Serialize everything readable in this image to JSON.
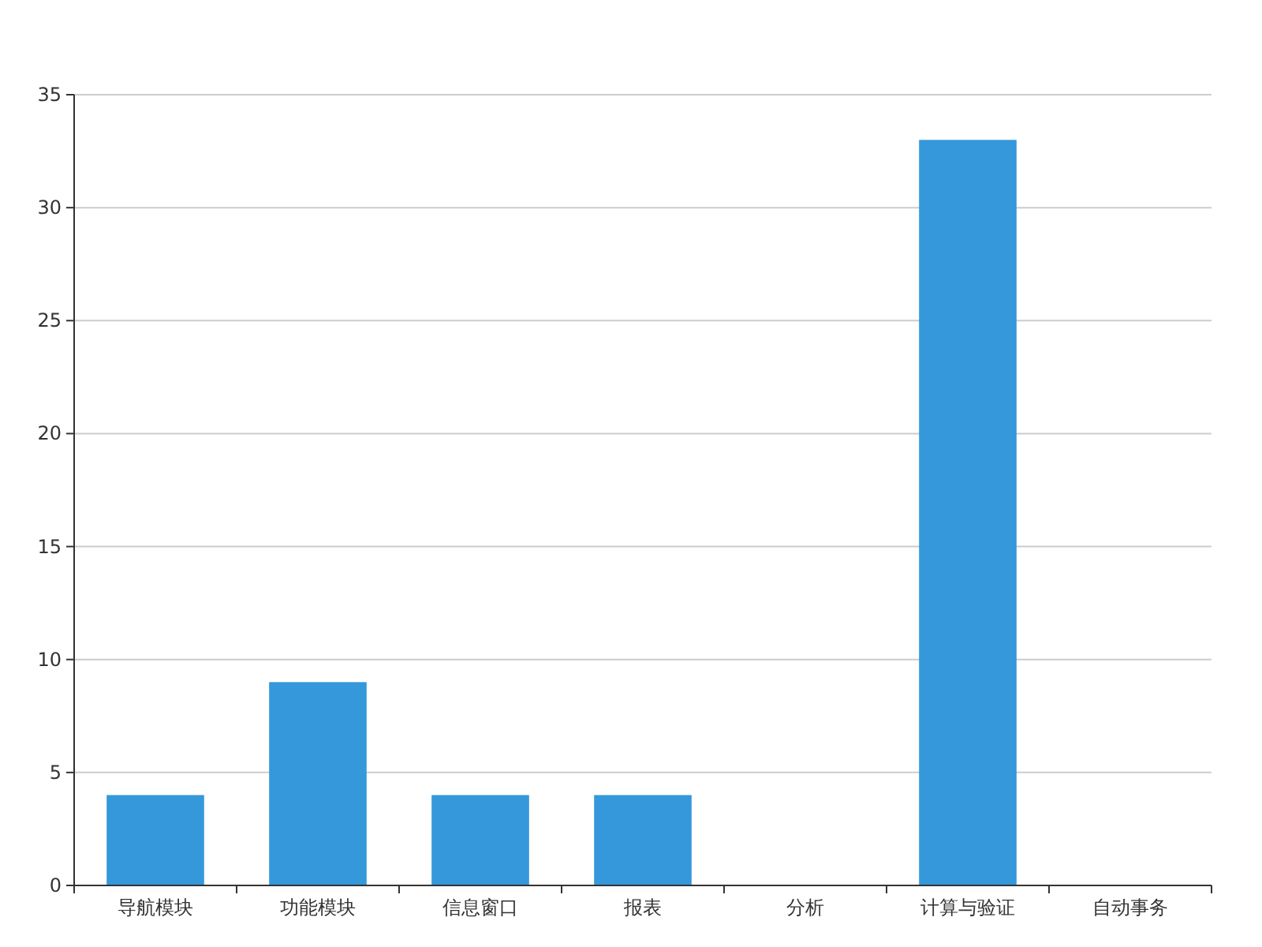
{
  "chart_data": {
    "type": "bar",
    "categories": [
      "导航模块",
      "功能模块",
      "信息窗口",
      "报表",
      "分析",
      "计算与验证",
      "自动事务"
    ],
    "values": [
      4,
      9,
      4,
      4,
      0,
      33,
      0
    ],
    "color": "#3498db",
    "ylim": [
      0,
      35
    ],
    "yticks": [
      0,
      5,
      10,
      15,
      20,
      25,
      30,
      35
    ],
    "grid": "y"
  }
}
